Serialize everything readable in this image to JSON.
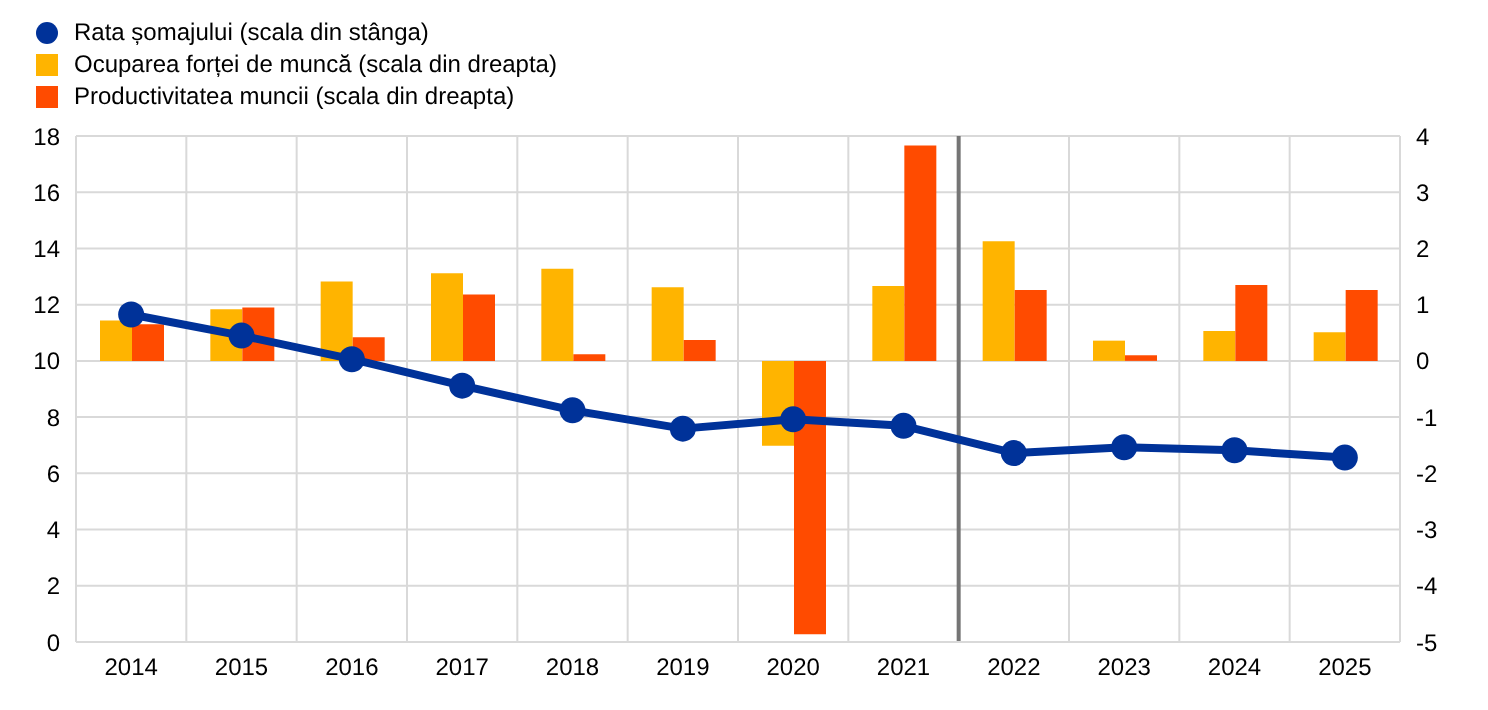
{
  "chart_data": {
    "type": "bar",
    "x": [
      2014,
      2015,
      2016,
      2017,
      2018,
      2019,
      2020,
      2021,
      2022,
      2023,
      2024,
      2025
    ],
    "xlim": [
      2013.5,
      2025.5
    ],
    "xticks": [
      2014,
      2015,
      2016,
      2017,
      2018,
      2019,
      2020,
      2021,
      2022,
      2023,
      2024,
      2025
    ],
    "series": [
      {
        "name": "Rata șomajului (scala din stânga)",
        "type": "line",
        "color": "#003299",
        "values": [
          11.65,
          10.9,
          10.06,
          9.12,
          8.24,
          7.59,
          7.92,
          7.69,
          6.72,
          6.93,
          6.82,
          6.56
        ]
      },
      {
        "name": "Ocuparea forței de muncă (scala din dreapta)",
        "axis": "y2",
        "color": "#ffb400",
        "values": [
          0.72,
          0.92,
          1.41,
          1.56,
          1.64,
          1.31,
          -1.51,
          1.33,
          2.13,
          0.36,
          0.53,
          0.51
        ]
      },
      {
        "name": "Productivitatea muncii (scala din dreapta)",
        "axis": "y2",
        "color": "#ff4b00",
        "values": [
          0.65,
          0.95,
          0.42,
          1.18,
          0.12,
          0.37,
          -4.86,
          3.83,
          1.26,
          0.1,
          1.35,
          1.26
        ]
      }
    ],
    "ylim": [
      0,
      18
    ],
    "yticks": [
      0,
      2,
      4,
      6,
      8,
      10,
      12,
      14,
      16,
      18
    ],
    "y2lim": [
      -5,
      4
    ],
    "y2ticks": [
      -5,
      -4,
      -3,
      -2,
      -1,
      0,
      1,
      2,
      3,
      4
    ],
    "ref_lines": [
      {
        "axis": "x",
        "value": 2021.5,
        "color": "#757575"
      }
    ],
    "grid": true,
    "legend": "top left",
    "marker": "circle",
    "line_style": "solid"
  }
}
